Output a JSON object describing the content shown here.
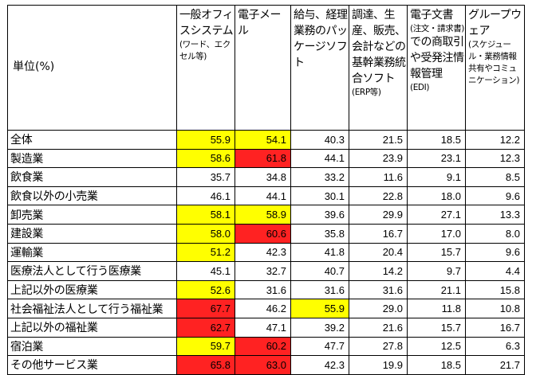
{
  "corner_label": "単位(%)",
  "columns": [
    {
      "main": "一般オフィスシステム",
      "sub": "(ワード、エクセル等)"
    },
    {
      "main": "電子メール",
      "sub": ""
    },
    {
      "main": "給与、経理業務のパッケージソフト",
      "sub": ""
    },
    {
      "main": "調達、生産、販売、会計などの基幹業務統合ソフト",
      "sub": "(ERP等)"
    },
    {
      "main": "電子文書",
      "note": "(注文・請求書)",
      "main2": "での商取引や受発注情報管理",
      "sub": "(EDI)"
    },
    {
      "main": "グループウェア",
      "sub": "(スケジュール・業務情報共有やコミュニケーション)"
    }
  ],
  "colors": {
    "high": "#ffff00",
    "highest": "#ff2222"
  },
  "rows": [
    {
      "label": "全体",
      "values": [
        "55.9",
        "54.1",
        "40.3",
        "21.5",
        "18.5",
        "12.2"
      ],
      "hl": [
        "y",
        "y",
        "",
        "",
        "",
        ""
      ]
    },
    {
      "label": "製造業",
      "values": [
        "58.6",
        "61.8",
        "44.1",
        "23.9",
        "23.1",
        "12.3"
      ],
      "hl": [
        "y",
        "r",
        "",
        "",
        "",
        ""
      ]
    },
    {
      "label": "飲食業",
      "values": [
        "35.7",
        "34.8",
        "33.2",
        "11.6",
        "9.1",
        "8.5"
      ],
      "hl": [
        "",
        "",
        "",
        "",
        "",
        ""
      ]
    },
    {
      "label": "飲食以外の小売業",
      "values": [
        "46.1",
        "44.1",
        "30.1",
        "22.8",
        "18.0",
        "9.6"
      ],
      "hl": [
        "",
        "",
        "",
        "",
        "",
        ""
      ]
    },
    {
      "label": "卸売業",
      "values": [
        "58.1",
        "58.9",
        "39.6",
        "29.9",
        "27.1",
        "13.3"
      ],
      "hl": [
        "y",
        "y",
        "",
        "",
        "",
        ""
      ]
    },
    {
      "label": "建設業",
      "values": [
        "58.0",
        "60.6",
        "35.8",
        "16.7",
        "17.0",
        "8.0"
      ],
      "hl": [
        "y",
        "r",
        "",
        "",
        "",
        ""
      ]
    },
    {
      "label": "運輸業",
      "values": [
        "51.2",
        "42.3",
        "41.8",
        "20.4",
        "15.7",
        "9.6"
      ],
      "hl": [
        "y",
        "",
        "",
        "",
        "",
        ""
      ]
    },
    {
      "label": "医療法人として行う医療業",
      "values": [
        "45.1",
        "32.7",
        "40.7",
        "14.2",
        "9.7",
        "4.4"
      ],
      "hl": [
        "",
        "",
        "",
        "",
        "",
        ""
      ]
    },
    {
      "label": "上記以外の医療業",
      "values": [
        "52.6",
        "31.6",
        "31.6",
        "31.6",
        "21.1",
        "15.8"
      ],
      "hl": [
        "y",
        "",
        "",
        "",
        "",
        ""
      ]
    },
    {
      "label": "社会福祉法人として行う福祉業",
      "values": [
        "67.7",
        "46.2",
        "55.9",
        "29.0",
        "11.8",
        "10.8"
      ],
      "hl": [
        "r",
        "",
        "y",
        "",
        "",
        ""
      ]
    },
    {
      "label": "上記以外の福祉業",
      "values": [
        "62.7",
        "47.1",
        "39.2",
        "21.6",
        "15.7",
        "16.7"
      ],
      "hl": [
        "r",
        "",
        "",
        "",
        "",
        ""
      ]
    },
    {
      "label": "宿泊業",
      "values": [
        "59.7",
        "60.2",
        "47.7",
        "27.8",
        "12.5",
        "6.3"
      ],
      "hl": [
        "y",
        "r",
        "",
        "",
        "",
        ""
      ]
    },
    {
      "label": "その他サービス業",
      "values": [
        "65.8",
        "63.0",
        "42.3",
        "19.9",
        "18.5",
        "21.7"
      ],
      "hl": [
        "r",
        "r",
        "",
        "",
        "",
        ""
      ]
    }
  ]
}
